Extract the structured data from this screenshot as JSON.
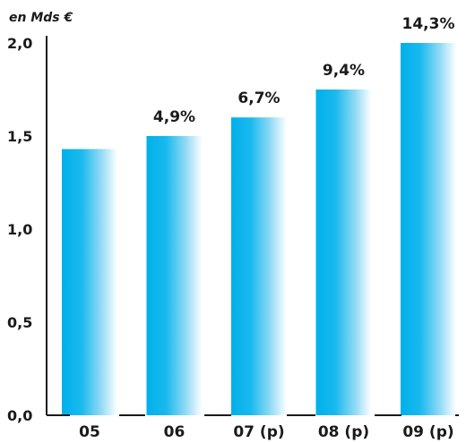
{
  "chart_data": {
    "type": "bar",
    "unit_label": "en Mds €",
    "categories": [
      "05",
      "06",
      "07 (p)",
      "08 (p)",
      "09 (p)"
    ],
    "values": [
      1.43,
      1.5,
      1.6,
      1.75,
      2.0
    ],
    "data_labels": [
      "",
      "4,9%",
      "6,7%",
      "9,4%",
      "14,3%"
    ],
    "y_ticks": [
      "0,0",
      "0,5",
      "1,0",
      "1,5",
      "2,0"
    ],
    "ylim": [
      0,
      2.0
    ],
    "grid": false,
    "legend": "none",
    "colors": {
      "bar_start": "#00b0ea",
      "bar_end": "#ffffff",
      "text": "#1a1a1a"
    }
  }
}
